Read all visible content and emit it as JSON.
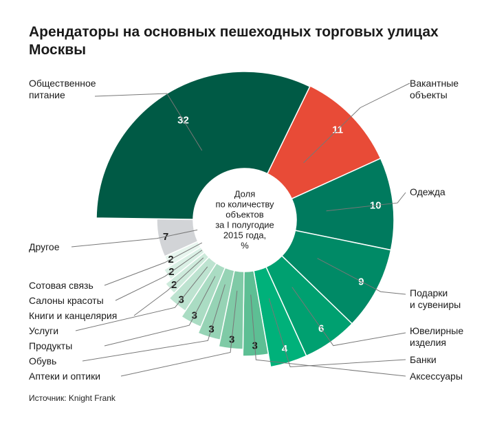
{
  "title_lines": [
    "Арендаторы на основных пешеходных торговых улицах",
    "Москвы"
  ],
  "source": "Источник: Knight Frank",
  "chart_data": {
    "type": "pie",
    "title": "Арендаторы на основных пешеходных торговых улицах Москвы",
    "center_label_lines": [
      "Доля",
      "по количеству",
      "объектов",
      "за I полугодие",
      "2015 года,",
      "%"
    ],
    "slices": [
      {
        "label_lines": [
          "Вакантные",
          "объекты"
        ],
        "value": 11,
        "color": "#e84b37"
      },
      {
        "label_lines": [
          "Одежда"
        ],
        "value": 10,
        "color": "#007a5e"
      },
      {
        "label_lines": [
          "Подарки",
          "и сувениры"
        ],
        "value": 9,
        "color": "#008a66"
      },
      {
        "label_lines": [
          "Ювелирные",
          "изделия"
        ],
        "value": 6,
        "color": "#00a070"
      },
      {
        "label_lines": [
          "Банки"
        ],
        "value": 4,
        "color": "#00b17a"
      },
      {
        "label_lines": [
          "Аксессуары"
        ],
        "value": 3,
        "color": "#5dbf94"
      },
      {
        "label_lines": [
          "Аптеки и оптики"
        ],
        "value": 3,
        "color": "#7fcaa6"
      },
      {
        "label_lines": [
          "Обувь"
        ],
        "value": 3,
        "color": "#96d3b5"
      },
      {
        "label_lines": [
          "Продукты"
        ],
        "value": 3,
        "color": "#aadcc3"
      },
      {
        "label_lines": [
          "Услуги"
        ],
        "value": 3,
        "color": "#bde3d0"
      },
      {
        "label_lines": [
          "Книги и канцелярия"
        ],
        "value": 2,
        "color": "#cdeadb"
      },
      {
        "label_lines": [
          "Салоны красоты"
        ],
        "value": 2,
        "color": "#daf0e5"
      },
      {
        "label_lines": [
          "Сотовая связь"
        ],
        "value": 2,
        "color": "#e7f5ee"
      },
      {
        "label_lines": [
          "Другое"
        ],
        "value": 7,
        "color": "#d2d4d7"
      },
      {
        "label_lines": [
          "Общественное",
          "питание"
        ],
        "value": 32,
        "color": "#005a45"
      }
    ]
  }
}
